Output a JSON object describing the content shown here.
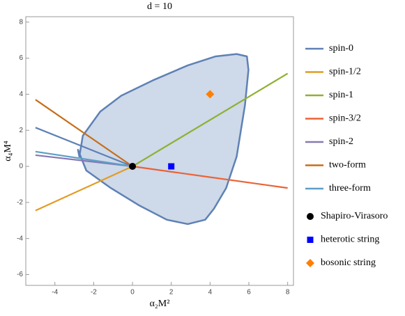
{
  "chart_data": {
    "type": "line",
    "title": "d = 10",
    "x_label": "α₂M²",
    "y_label": "α₄M⁴",
    "xlim": [
      -5.5,
      8.3
    ],
    "ylim": [
      -6.6,
      8.3
    ],
    "xticks": [
      -4,
      -2,
      0,
      2,
      4,
      6,
      8
    ],
    "yticks": [
      -6,
      -4,
      -2,
      0,
      2,
      4,
      6,
      8
    ],
    "region": {
      "color": "#5e81b5",
      "x": [
        -2.81,
        -2.74,
        -2.56,
        -1.66,
        -0.58,
        1.05,
        2.85,
        4.29,
        5.37,
        5.9,
        5.98,
        5.8,
        5.37,
        4.83,
        4.2,
        3.75,
        2.85,
        1.77,
        0.32,
        -1.12,
        -2.38
      ],
      "y": [
        0.92,
        0.54,
        1.7,
        3.04,
        3.92,
        4.77,
        5.6,
        6.1,
        6.23,
        6.1,
        5.35,
        3.4,
        0.54,
        -1.2,
        -2.35,
        -2.96,
        -3.2,
        -2.96,
        -2.15,
        -1.2,
        -0.23
      ]
    },
    "series": [
      {
        "name": "spin-0",
        "color": "#5e81b5",
        "x": [
          -5,
          0
        ],
        "values": [
          2.15,
          0
        ]
      },
      {
        "name": "spin-1/2",
        "color": "#e19c24",
        "x": [
          -5,
          0
        ],
        "values": [
          -2.45,
          0
        ]
      },
      {
        "name": "spin-1",
        "color": "#8fb032",
        "x": [
          0,
          8
        ],
        "values": [
          0,
          5.15
        ]
      },
      {
        "name": "spin-3/2",
        "color": "#eb6235",
        "x": [
          0,
          8
        ],
        "values": [
          0,
          -1.2
        ]
      },
      {
        "name": "spin-2",
        "color": "#8778b3",
        "x": [
          -5,
          0
        ],
        "values": [
          0.62,
          0
        ]
      },
      {
        "name": "two-form",
        "color": "#c56e1a",
        "x": [
          -5,
          0
        ],
        "values": [
          3.7,
          0
        ]
      },
      {
        "name": "three-form",
        "color": "#5d9ec7",
        "x": [
          -5,
          0
        ],
        "values": [
          0.82,
          0
        ]
      }
    ],
    "points": [
      {
        "name": "Shapiro-Virasoro",
        "color": "#000000",
        "shape": "circle",
        "x": 0,
        "y": 0
      },
      {
        "name": "heterotic string",
        "color": "#0000ff",
        "shape": "square",
        "x": 2,
        "y": 0
      },
      {
        "name": "bosonic string",
        "color": "#ff7f00",
        "shape": "diamond",
        "x": 4,
        "y": 4
      }
    ]
  }
}
